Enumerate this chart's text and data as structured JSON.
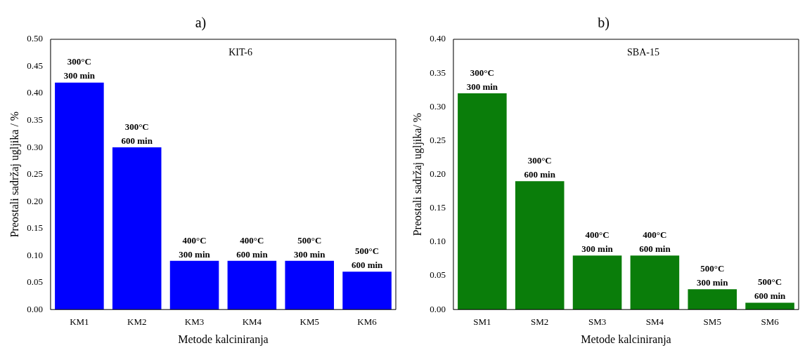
{
  "chart_data": [
    {
      "type": "bar",
      "title": "a)",
      "xlabel": "Metode kalciniranja",
      "ylabel": "Preostali sadržaj ugljika / %",
      "categories": [
        "KM1",
        "KM2",
        "KM3",
        "KM4",
        "KM5",
        "KM6"
      ],
      "values": [
        0.42,
        0.3,
        0.09,
        0.09,
        0.09,
        0.07
      ],
      "color": "#0000ff",
      "ylim": [
        0,
        0.5
      ],
      "yticks": [
        {
          "value": 0,
          "label": "0.00"
        },
        0.05,
        {
          "value": 0.1,
          "label": "0.10"
        },
        0.15,
        {
          "value": 0.2,
          "label": "0.20"
        },
        0.25,
        {
          "value": 0.3,
          "label": "0.30"
        },
        0.35,
        {
          "value": 0.4,
          "label": "0.40"
        },
        0.45,
        {
          "value": 0.5,
          "label": "0.50"
        }
      ],
      "grid": false,
      "legend": false,
      "annotations": [
        "KIT-6",
        {
          "text": "300°C\n300 min",
          "x": "KM1",
          "y": 0.42
        },
        {
          "text": "300°C\n600 min",
          "x": "KM2",
          "y": 0.3
        },
        {
          "text": "400°C\n300 min",
          "x": "KM3",
          "y": 0.09
        },
        {
          "text": "400°C\n600 min",
          "x": "KM4",
          "y": 0.09
        },
        {
          "text": "500°C\n300 min",
          "x": "KM5",
          "y": 0.09
        },
        {
          "text": "500°C\n600 min",
          "x": "KM6",
          "y": 0.07
        }
      ]
    },
    {
      "type": "bar",
      "title": "b)",
      "xlabel": "Metode kalciniranja",
      "ylabel": "Preostali sadržaj ugljika/ %",
      "categories": [
        "SM1",
        "SM2",
        "SM3",
        "SM4",
        "SM5",
        "SM6"
      ],
      "values": [
        0.32,
        0.19,
        0.08,
        0.08,
        0.03,
        0.01
      ],
      "color": "#0a7d0a",
      "ylim": [
        0,
        0.4
      ],
      "yticks": [
        {
          "value": 0,
          "label": "0.00"
        },
        0.05,
        {
          "value": 0.1,
          "label": "0.10"
        },
        0.15,
        {
          "value": 0.2,
          "label": "0.20"
        },
        0.25,
        {
          "value": 0.3,
          "label": "0.30"
        },
        0.35,
        {
          "value": 0.4,
          "label": "0.40"
        }
      ],
      "grid": false,
      "legend": false,
      "annotations": [
        "SBA-15",
        {
          "text": "300°C\n300 min",
          "x": "SM1",
          "y": 0.32
        },
        {
          "text": "300°C\n600 min",
          "x": "SM2",
          "y": 0.19
        },
        {
          "text": "400°C\n300 min",
          "x": "SM3",
          "y": 0.08
        },
        {
          "text": "400°C\n600 min",
          "x": "SM4",
          "y": 0.08
        },
        {
          "text": "500°C\n300 min",
          "x": "SM5",
          "y": 0.03
        },
        {
          "text": "500°C\n600 min",
          "x": "SM6",
          "y": 0.01
        }
      ]
    }
  ]
}
